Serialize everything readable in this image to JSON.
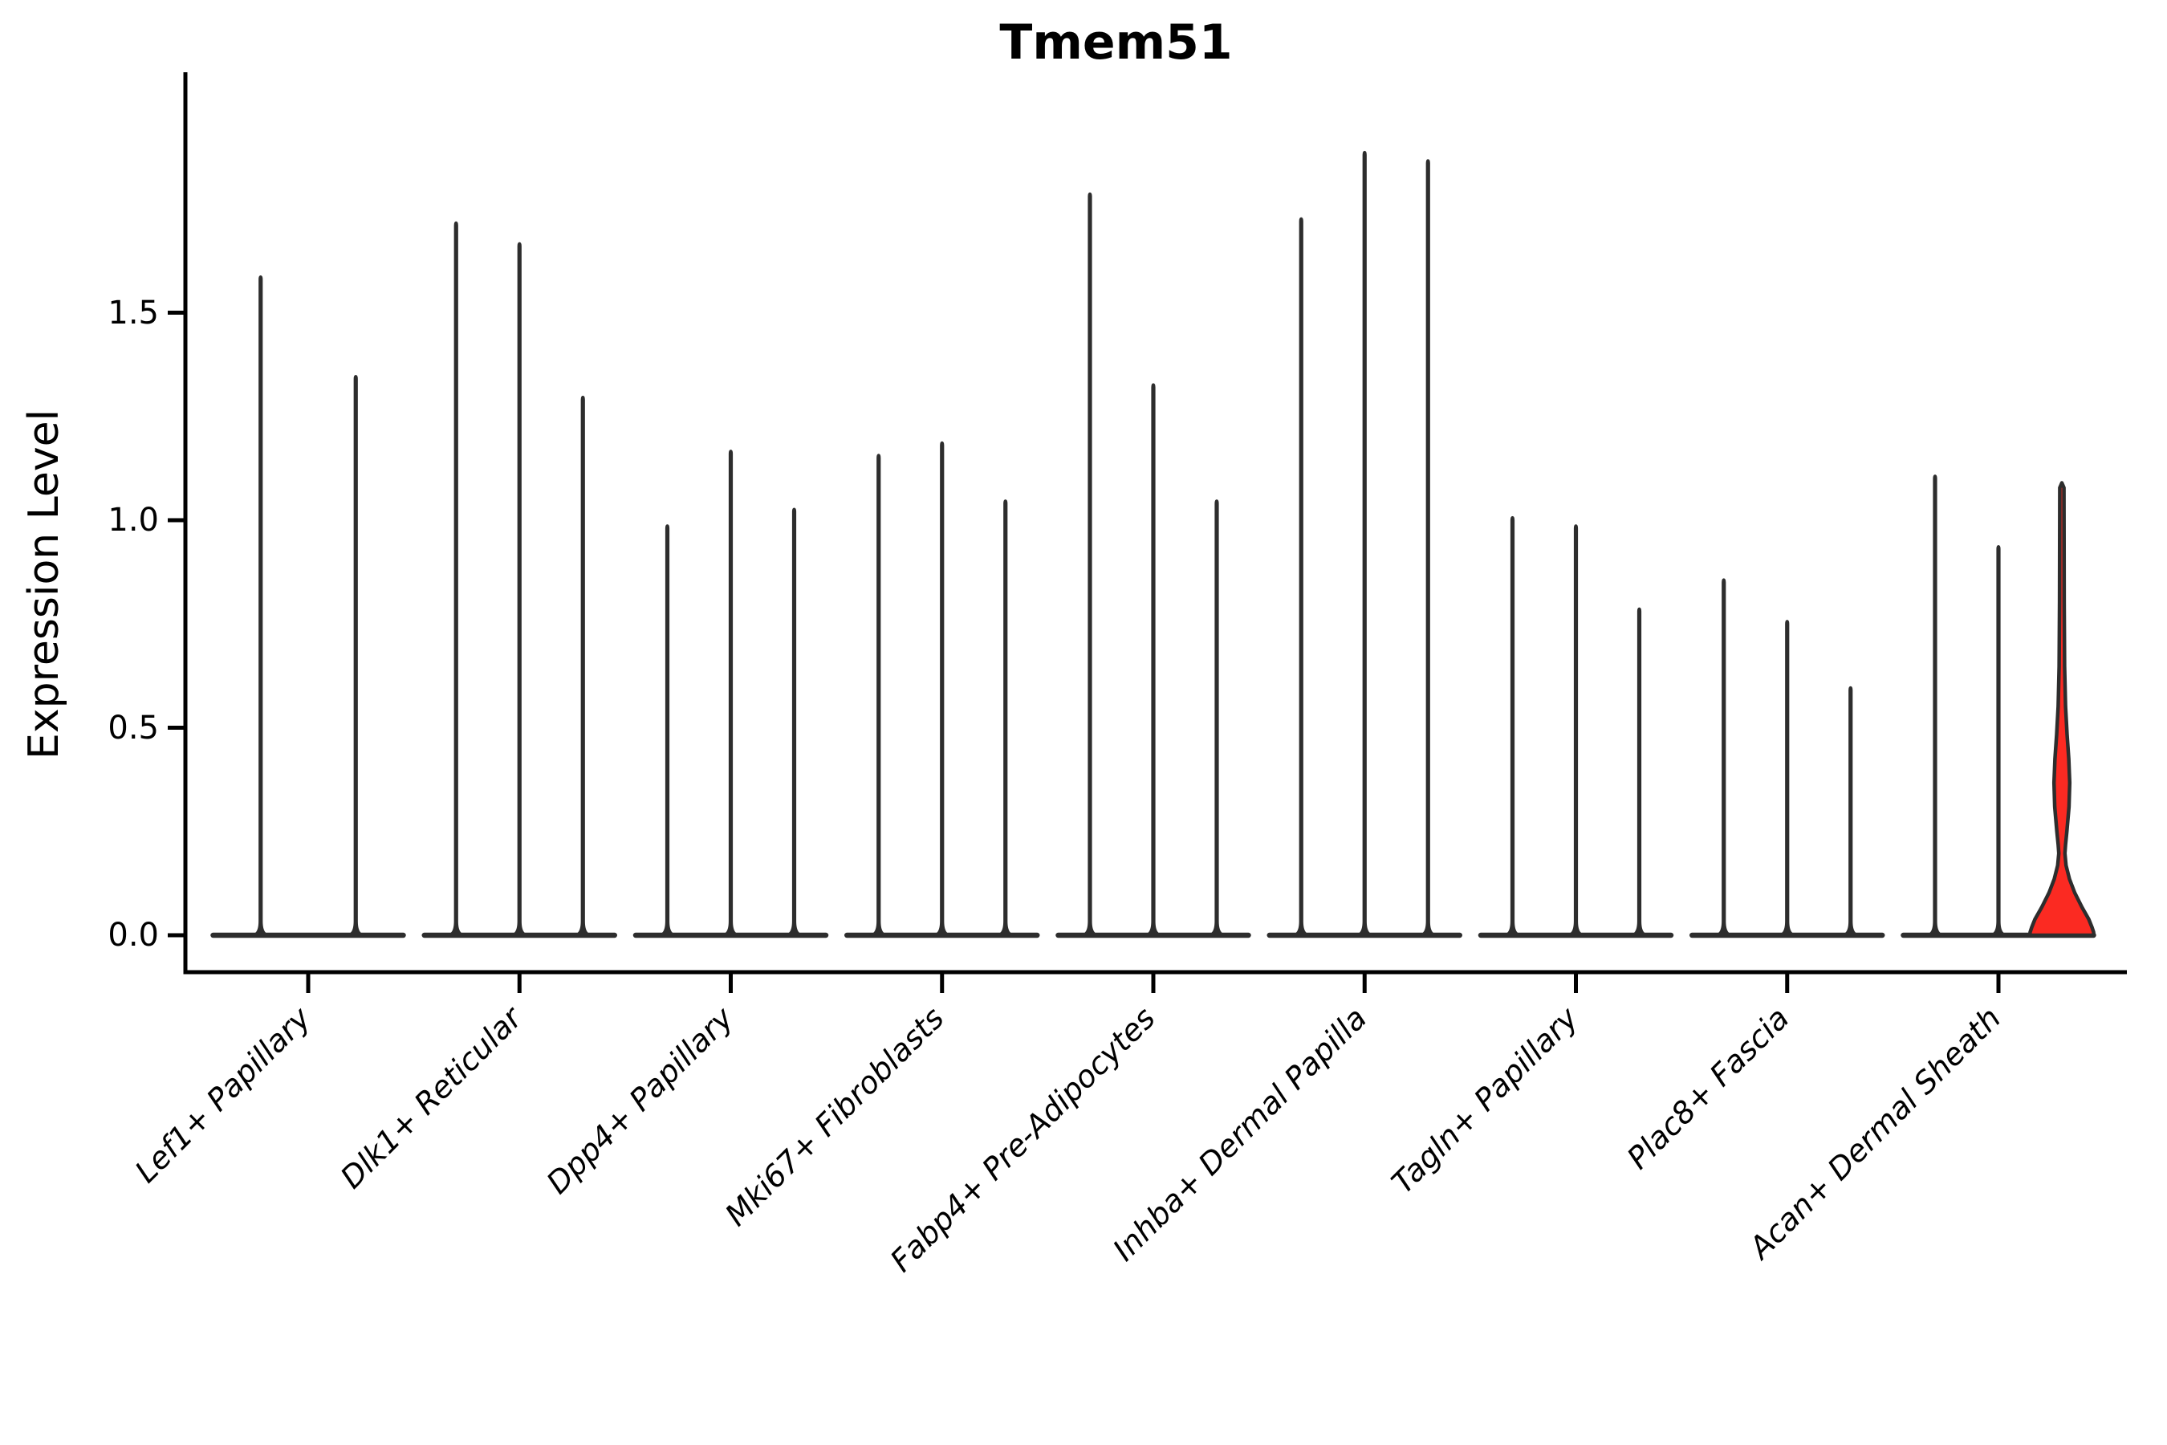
{
  "title": "Tmem51",
  "y_axis": {
    "label": "Expression Level",
    "tick_labels": [
      "0.0",
      "0.5",
      "1.0",
      "1.5"
    ]
  },
  "chart_data": {
    "type": "violin",
    "title": "Tmem51",
    "xlabel": "",
    "ylabel": "Expression Level",
    "ylim": [
      0,
      2.08
    ],
    "yticks": [
      {
        "label": "0.0",
        "value": 0.0
      },
      {
        "label": "0.5",
        "value": 0.5
      },
      {
        "label": "1.0",
        "value": 1.0
      },
      {
        "label": "1.5",
        "value": 1.5
      }
    ],
    "grid": false,
    "legend": "none",
    "categories": [
      "Lef1+ Papillary",
      "Dlk1+ Reticular",
      "Dpp4+ Papillary",
      "Mki67+ Fibroblasts",
      "Fabp4+ Pre-Adipocytes",
      "Inhba+ Dermal Papilla",
      "Tagln+ Papillary",
      "Plac8+ Fascia",
      "Acan+ Dermal Sheath"
    ],
    "description": "Each category shows narrow collapsed violins (expression concentrated at 0) whose thin spikes reach the listed maximum expression value; the third violin of Acan+ Dermal Sheath is highlighted red with a visible density bulge near 0.35 and a wide base at 0.",
    "groups": [
      {
        "label": "Lef1+ Papillary",
        "violins": [
          {
            "max": 1.59
          },
          {
            "max": 1.35
          }
        ]
      },
      {
        "label": "Dlk1+ Reticular",
        "violins": [
          {
            "max": 1.72
          },
          {
            "max": 1.67
          },
          {
            "max": 1.3
          }
        ]
      },
      {
        "label": "Dpp4+ Papillary",
        "violins": [
          {
            "max": 0.99
          },
          {
            "max": 1.17
          },
          {
            "max": 1.03
          }
        ]
      },
      {
        "label": "Mki67+ Fibroblasts",
        "violins": [
          {
            "max": 1.16
          },
          {
            "max": 1.19
          },
          {
            "max": 1.05
          }
        ]
      },
      {
        "label": "Fabp4+ Pre-Adipocytes",
        "violins": [
          {
            "max": 1.79
          },
          {
            "max": 1.33
          },
          {
            "max": 1.05
          }
        ]
      },
      {
        "label": "Inhba+ Dermal Papilla",
        "violins": [
          {
            "max": 1.73
          },
          {
            "max": 1.89
          },
          {
            "max": 1.87
          }
        ]
      },
      {
        "label": "Tagln+ Papillary",
        "violins": [
          {
            "max": 1.01
          },
          {
            "max": 0.99
          },
          {
            "max": 0.79
          }
        ]
      },
      {
        "label": "Plac8+ Fascia",
        "violins": [
          {
            "max": 0.86
          },
          {
            "max": 0.76
          },
          {
            "max": 0.6
          }
        ]
      },
      {
        "label": "Acan+ Dermal Sheath",
        "violins": [
          {
            "max": 1.11
          },
          {
            "max": 0.94
          },
          {
            "max": 1.09,
            "highlight": true,
            "shape": "bulged"
          }
        ]
      }
    ],
    "colors": {
      "violin_stroke": "#2d2d2d",
      "highlight_fill": "#fb2a22",
      "axis_color": "#000000",
      "text_color": "#000000",
      "background": "#ffffff"
    }
  }
}
